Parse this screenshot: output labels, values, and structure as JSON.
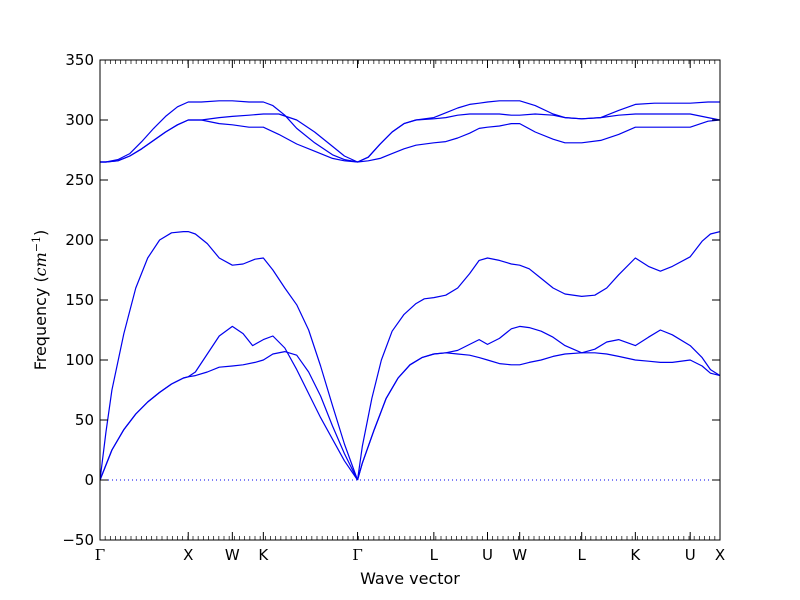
{
  "chart_data": {
    "type": "line",
    "title": "",
    "xlabel": "Wave vector",
    "ylabel": {
      "prefix": "Frequency (",
      "unit": "cm",
      "exponent": "−1",
      "suffix": ")"
    },
    "ylim": [
      -50,
      350
    ],
    "y_ticks": [
      -50,
      0,
      50,
      100,
      150,
      200,
      250,
      300,
      350
    ],
    "y_tick_labels": [
      "−50",
      "0",
      "50",
      "100",
      "150",
      "200",
      "250",
      "300",
      "350"
    ],
    "xlim": [
      0,
      520
    ],
    "x_ticks": [
      {
        "label": "Γ",
        "value": 0,
        "serif": true
      },
      {
        "label": "X",
        "value": 74
      },
      {
        "label": "W",
        "value": 111
      },
      {
        "label": "K",
        "value": 137
      },
      {
        "label": "Γ",
        "value": 216,
        "serif": true
      },
      {
        "label": "L",
        "value": 280
      },
      {
        "label": "U",
        "value": 325
      },
      {
        "label": "W",
        "value": 352
      },
      {
        "label": "L",
        "value": 404
      },
      {
        "label": "K",
        "value": 449
      },
      {
        "label": "U",
        "value": 495
      },
      {
        "label": "X",
        "value": 520
      }
    ],
    "zero_line": {
      "y": 0,
      "style": "dotted"
    },
    "line_color": "#0000ee",
    "series": [
      {
        "x": [
          0,
          4,
          10,
          20,
          30,
          40,
          50,
          60,
          70,
          74,
          80,
          90,
          100,
          111,
          120,
          130,
          137,
          145,
          155,
          165,
          175,
          185,
          195,
          205,
          216
        ],
        "y": [
          0,
          10,
          25,
          42,
          55,
          65,
          73,
          80,
          85,
          86,
          87,
          90,
          94,
          95,
          96,
          98,
          100,
          105,
          107,
          104,
          90,
          70,
          45,
          22,
          0
        ]
      },
      {
        "x": [
          0,
          4,
          10,
          20,
          30,
          40,
          50,
          60,
          70,
          74,
          80,
          90,
          100,
          111,
          120,
          128,
          137,
          145,
          155,
          165,
          175,
          185,
          195,
          205,
          216
        ],
        "y": [
          0,
          10,
          25,
          42,
          55,
          65,
          73,
          80,
          85,
          86,
          90,
          105,
          120,
          128,
          122,
          112,
          117,
          120,
          110,
          92,
          72,
          52,
          34,
          16,
          0
        ]
      },
      {
        "x": [
          0,
          5,
          10,
          20,
          30,
          40,
          50,
          60,
          70,
          74,
          80,
          90,
          100,
          111,
          120,
          130,
          137,
          145,
          155,
          165,
          175,
          185,
          195,
          205,
          216
        ],
        "y": [
          0,
          40,
          75,
          122,
          160,
          185,
          200,
          206,
          207,
          207,
          205,
          197,
          185,
          179,
          180,
          184,
          185,
          175,
          160,
          146,
          125,
          95,
          62,
          30,
          0
        ]
      },
      {
        "x": [
          216,
          220,
          230,
          240,
          250,
          260,
          270,
          280,
          290,
          300,
          310,
          318,
          325,
          335,
          345,
          352,
          360,
          370,
          380,
          390,
          404,
          415,
          425,
          435,
          449,
          460,
          470,
          480,
          495,
          505,
          512,
          520
        ],
        "y": [
          0,
          14,
          42,
          68,
          85,
          96,
          102,
          105,
          106,
          105,
          104,
          102,
          100,
          97,
          96,
          96,
          98,
          100,
          103,
          105,
          106,
          106,
          105,
          103,
          100,
          99,
          98,
          98,
          100,
          95,
          89,
          87
        ]
      },
      {
        "x": [
          216,
          220,
          230,
          240,
          250,
          260,
          270,
          280,
          290,
          300,
          310,
          318,
          325,
          335,
          345,
          352,
          360,
          370,
          380,
          390,
          404,
          415,
          425,
          435,
          449,
          460,
          470,
          480,
          495,
          505,
          512,
          520
        ],
        "y": [
          0,
          14,
          42,
          68,
          85,
          96,
          102,
          105,
          106,
          108,
          113,
          117,
          113,
          118,
          126,
          128,
          127,
          124,
          119,
          112,
          106,
          109,
          115,
          117,
          112,
          119,
          125,
          121,
          112,
          102,
          92,
          87
        ]
      },
      {
        "x": [
          216,
          220,
          228,
          236,
          245,
          255,
          265,
          272,
          280,
          290,
          300,
          310,
          318,
          325,
          335,
          345,
          352,
          360,
          370,
          380,
          390,
          404,
          415,
          425,
          435,
          449,
          460,
          470,
          480,
          495,
          505,
          512,
          520
        ],
        "y": [
          0,
          28,
          68,
          100,
          124,
          138,
          147,
          151,
          152,
          154,
          160,
          172,
          183,
          185,
          183,
          180,
          179,
          176,
          168,
          160,
          155,
          153,
          154,
          160,
          171,
          185,
          178,
          174,
          178,
          186,
          199,
          205,
          207
        ]
      },
      {
        "x": [
          0,
          5,
          15,
          25,
          35,
          45,
          55,
          65,
          74,
          85,
          100,
          111,
          125,
          137,
          150,
          165,
          180,
          195,
          205,
          216,
          225,
          235,
          245,
          255,
          265,
          280,
          290,
          300,
          310,
          318,
          325,
          335,
          345,
          352,
          365,
          380,
          390,
          404,
          420,
          435,
          449,
          465,
          480,
          495,
          510,
          520
        ],
        "y": [
          265,
          265,
          266,
          270,
          276,
          283,
          290,
          296,
          300,
          300,
          297,
          296,
          294,
          294,
          288,
          280,
          274,
          268,
          266,
          265,
          266,
          268,
          272,
          276,
          279,
          281,
          282,
          285,
          289,
          293,
          294,
          295,
          297,
          297,
          290,
          284,
          281,
          281,
          283,
          288,
          294,
          294,
          294,
          294,
          299,
          300
        ]
      },
      {
        "x": [
          0,
          5,
          15,
          25,
          35,
          45,
          55,
          65,
          74,
          85,
          100,
          111,
          125,
          137,
          150,
          165,
          180,
          195,
          205,
          216,
          225,
          235,
          245,
          255,
          265,
          280,
          290,
          300,
          310,
          318,
          325,
          335,
          345,
          352,
          365,
          380,
          390,
          404,
          420,
          435,
          449,
          465,
          480,
          495,
          510,
          520
        ],
        "y": [
          265,
          265,
          266,
          270,
          276,
          283,
          290,
          296,
          300,
          300,
          302,
          303,
          304,
          305,
          305,
          300,
          290,
          278,
          270,
          265,
          269,
          280,
          290,
          297,
          300,
          301,
          302,
          304,
          305,
          305,
          305,
          305,
          304,
          304,
          305,
          304,
          302,
          301,
          302,
          304,
          305,
          305,
          305,
          305,
          302,
          300
        ]
      },
      {
        "x": [
          0,
          5,
          15,
          25,
          35,
          45,
          55,
          65,
          74,
          85,
          100,
          111,
          125,
          137,
          145,
          155,
          165,
          180,
          195,
          205,
          216,
          225,
          235,
          245,
          255,
          265,
          280,
          290,
          300,
          310,
          318,
          325,
          335,
          345,
          352,
          365,
          380,
          390,
          404,
          420,
          435,
          449,
          465,
          480,
          495,
          510,
          520
        ],
        "y": [
          265,
          265,
          267,
          272,
          282,
          293,
          303,
          311,
          315,
          315,
          316,
          316,
          315,
          315,
          312,
          304,
          293,
          281,
          271,
          267,
          265,
          269,
          280,
          290,
          297,
          300,
          302,
          306,
          310,
          313,
          314,
          315,
          316,
          316,
          316,
          312,
          305,
          302,
          301,
          302,
          308,
          313,
          314,
          314,
          314,
          315,
          315
        ]
      }
    ]
  }
}
